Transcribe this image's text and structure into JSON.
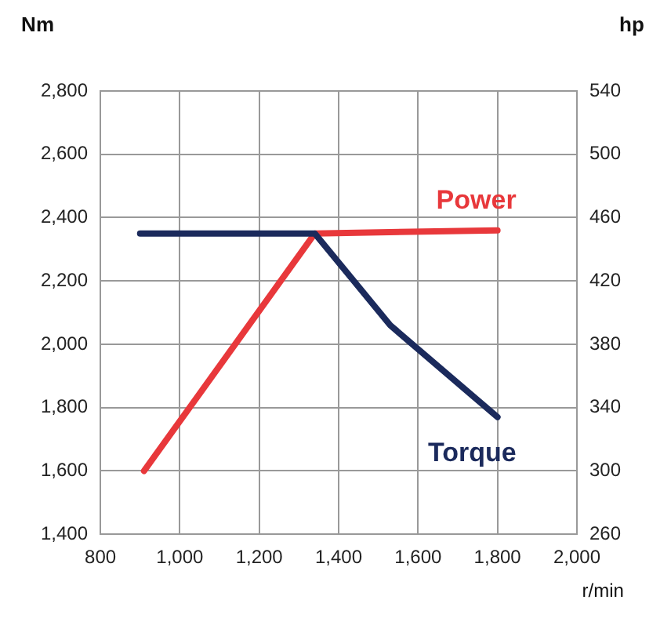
{
  "chart_data": {
    "type": "line",
    "xlabel": "r/min",
    "ylabel": "Nm",
    "y2label": "hp",
    "xlim": [
      800,
      2000
    ],
    "xticks": [
      {
        "value": 800,
        "label": "800"
      },
      {
        "value": 1000,
        "label": "1,000"
      },
      {
        "value": 1200,
        "label": "1,200"
      },
      {
        "value": 1400,
        "label": "1,400"
      },
      {
        "value": 1600,
        "label": "1,600"
      },
      {
        "value": 1800,
        "label": "1,800"
      },
      {
        "value": 2000,
        "label": "2,000"
      }
    ],
    "ylim": [
      1400,
      2800
    ],
    "yticks": [
      {
        "value": 1400,
        "label": "1,400"
      },
      {
        "value": 1600,
        "label": "1,600"
      },
      {
        "value": 1800,
        "label": "1,800"
      },
      {
        "value": 2000,
        "label": "2,000"
      },
      {
        "value": 2200,
        "label": "2,200"
      },
      {
        "value": 2400,
        "label": "2,400"
      },
      {
        "value": 2600,
        "label": "2,600"
      },
      {
        "value": 2800,
        "label": "2,800"
      }
    ],
    "y2lim": [
      260,
      540
    ],
    "y2ticks": [
      260,
      300,
      340,
      380,
      420,
      460,
      500,
      540
    ],
    "grid": true,
    "legend": false,
    "marker": "none",
    "line_style": "solid",
    "series": [
      {
        "name": "Torque",
        "color": "#1b2a5c",
        "axis": "y",
        "x": [
          900,
          1340,
          1530,
          1800
        ],
        "values": [
          2350,
          2350,
          2060,
          1770
        ]
      },
      {
        "name": "Power",
        "color": "#e8383b",
        "axis": "y2",
        "x": [
          910,
          1340,
          1800
        ],
        "values": [
          300,
          450,
          452
        ]
      }
    ]
  }
}
